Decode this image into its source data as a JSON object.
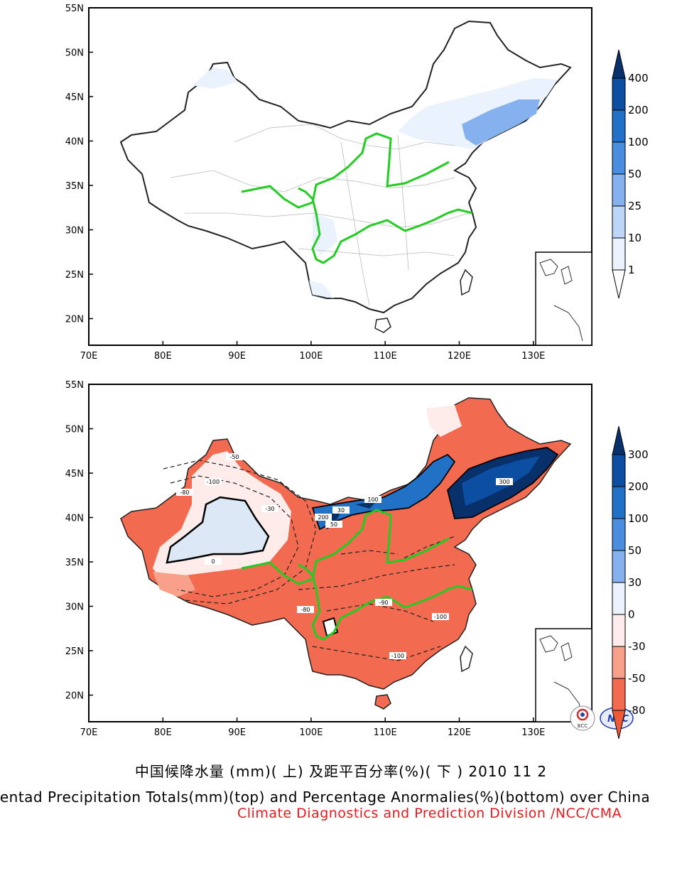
{
  "top_map": {
    "lat_labels": [
      "55N",
      "50N",
      "45N",
      "40N",
      "35N",
      "30N",
      "25N",
      "20N"
    ],
    "lon_labels": [
      "70E",
      "80E",
      "90E",
      "100E",
      "110E",
      "120E",
      "130E"
    ],
    "colorbar_labels": [
      "400",
      "200",
      "100",
      "50",
      "25",
      "10",
      "1"
    ],
    "colorbar_colors": [
      "#08306b",
      "#0b4ea2",
      "#2171c6",
      "#4a8fdf",
      "#85b2ee",
      "#bdd6f7",
      "#eaf2fd",
      "#ffffff"
    ]
  },
  "bottom_map": {
    "lat_labels": [
      "55N",
      "50N",
      "45N",
      "40N",
      "35N",
      "30N",
      "25N",
      "20N"
    ],
    "lon_labels": [
      "70E",
      "80E",
      "90E",
      "100E",
      "110E",
      "120E",
      "130E"
    ],
    "colorbar_labels": [
      "300",
      "200",
      "100",
      "50",
      "30",
      "0",
      "-30",
      "-50",
      "-80"
    ],
    "colorbar_colors": [
      "#08306b",
      "#0b4ea2",
      "#2171c6",
      "#4a8fdf",
      "#85b2ee",
      "#eaf2fd",
      "#fdecea",
      "#f8a08a",
      "#f26a4f",
      "#ee5a3a"
    ],
    "contour_labels": [
      "-100",
      "-80",
      "-50",
      "-30",
      "0",
      "30",
      "50",
      "100",
      "200",
      "300",
      "-90",
      "-80",
      "-100",
      "-100"
    ]
  },
  "logos": {
    "bcc": "BCC",
    "ncc": "NCC"
  },
  "caption": {
    "chinese": "中国候降水量 (mm)( 上) 及距平百分率(%)( 下 ) 2010 11 2",
    "english": "Pentad Precipitation Totals(mm)(top) and Percentage Anormalies(%)(bottom) over China",
    "division": "Climate Diagnostics and Prediction Division /NCC/CMA"
  }
}
